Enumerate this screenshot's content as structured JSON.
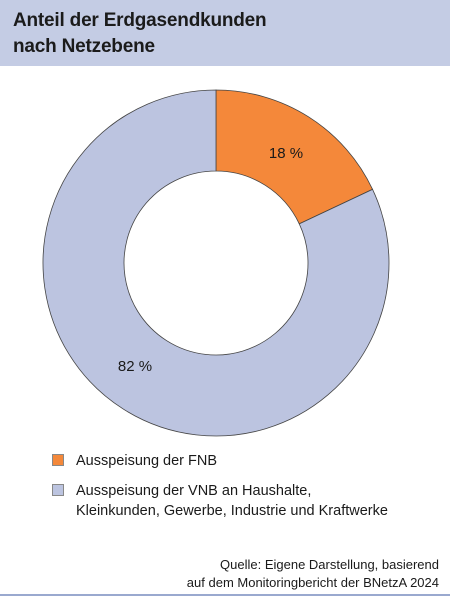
{
  "title": {
    "line1": "Anteil der Erdgasendkunden",
    "line2": "nach Netzebene"
  },
  "chart_data": {
    "type": "pie",
    "variant": "donut",
    "categories": [
      "Ausspeisung der FNB",
      "Ausspeisung der VNB an Haushalte, Kleinkunden, Gewerbe, Industrie und Kraftwerke"
    ],
    "values": [
      18,
      82
    ],
    "data_labels": [
      "18 %",
      "82 %"
    ],
    "colors": [
      "#f4883a",
      "#bcc4e0"
    ],
    "legend_position": "bottom-left"
  },
  "legend": {
    "item1": {
      "label": "Ausspeisung der FNB"
    },
    "item2": {
      "line1": "Ausspeisung der VNB an Haushalte,",
      "line2": "Kleinkunden, Gewerbe, Industrie und Kraftwerke"
    }
  },
  "source": {
    "line1": "Quelle: Eigene Darstellung, basierend",
    "line2": "auf dem Monitoringbericht der BNetzA 2024"
  }
}
